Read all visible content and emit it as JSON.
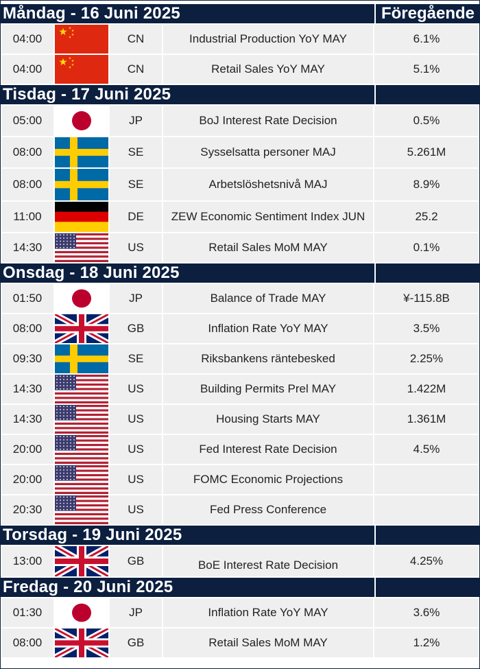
{
  "columns": {
    "previous": "Föregående"
  },
  "days": [
    {
      "label": "Måndag - 16 Juni 2025",
      "events": [
        {
          "time": "04:00",
          "flag": "cn",
          "code": "CN",
          "event": "Industrial Production YoY MAY",
          "previous": "6.1%"
        },
        {
          "time": "04:00",
          "flag": "cn",
          "code": "CN",
          "event": "Retail Sales YoY MAY",
          "previous": "5.1%"
        }
      ]
    },
    {
      "label": "Tisdag - 17 Juni 2025",
      "events": [
        {
          "time": "05:00",
          "flag": "jp",
          "code": "JP",
          "event": "BoJ Interest Rate Decision",
          "previous": "0.5%"
        },
        {
          "time": "08:00",
          "flag": "se",
          "code": "SE",
          "event": "Sysselsatta personer MAJ",
          "previous": "5.261M"
        },
        {
          "time": "08:00",
          "flag": "se",
          "code": "SE",
          "event": "Arbetslöshetsnivå MAJ",
          "previous": "8.9%"
        },
        {
          "time": "11:00",
          "flag": "de",
          "code": "DE",
          "event": "ZEW Economic Sentiment Index JUN",
          "previous": "25.2"
        },
        {
          "time": "14:30",
          "flag": "us",
          "code": "US",
          "event": "Retail Sales MoM MAY",
          "previous": "0.1%"
        }
      ]
    },
    {
      "label": "Onsdag - 18 Juni 2025",
      "events": [
        {
          "time": "01:50",
          "flag": "jp",
          "code": "JP",
          "event": "Balance of Trade MAY",
          "previous": "¥-115.8B"
        },
        {
          "time": "08:00",
          "flag": "gb",
          "code": "GB",
          "event": "Inflation Rate YoY MAY",
          "previous": "3.5%"
        },
        {
          "time": "09:30",
          "flag": "se",
          "code": "SE",
          "event": "Riksbankens räntebesked",
          "previous": "2.25%"
        },
        {
          "time": "14:30",
          "flag": "us",
          "code": "US",
          "event": "Building Permits Prel MAY",
          "previous": "1.422M"
        },
        {
          "time": "14:30",
          "flag": "us",
          "code": "US",
          "event": "Housing Starts MAY",
          "previous": "1.361M"
        },
        {
          "time": "20:00",
          "flag": "us",
          "code": "US",
          "event": "Fed Interest Rate Decision",
          "previous": "4.5%"
        },
        {
          "time": "20:00",
          "flag": "us",
          "code": "US",
          "event": "FOMC Economic Projections",
          "previous": ""
        },
        {
          "time": "20:30",
          "flag": "us",
          "code": "US",
          "event": "Fed Press Conference",
          "previous": ""
        }
      ]
    },
    {
      "label": "Torsdag - 19 Juni 2025",
      "events": [
        {
          "time": "13:00",
          "flag": "gb",
          "code": "GB",
          "event": "BoE Interest Rate Decision",
          "previous": "4.25%"
        }
      ]
    },
    {
      "label": "Fredag - 20 Juni 2025",
      "events": [
        {
          "time": "01:30",
          "flag": "jp",
          "code": "JP",
          "event": "Inflation Rate YoY MAY",
          "previous": "3.6%"
        },
        {
          "time": "08:00",
          "flag": "gb",
          "code": "GB",
          "event": "Retail Sales MoM MAY",
          "previous": "1.2%"
        }
      ]
    }
  ],
  "icons": {
    "cn": "china-flag-icon",
    "jp": "japan-flag-icon",
    "se": "sweden-flag-icon",
    "de": "germany-flag-icon",
    "us": "usa-flag-icon",
    "gb": "uk-flag-icon"
  },
  "colors": {
    "header_bg": "#0c1f3f",
    "row_bg": "#efefef",
    "text": "#222222"
  }
}
